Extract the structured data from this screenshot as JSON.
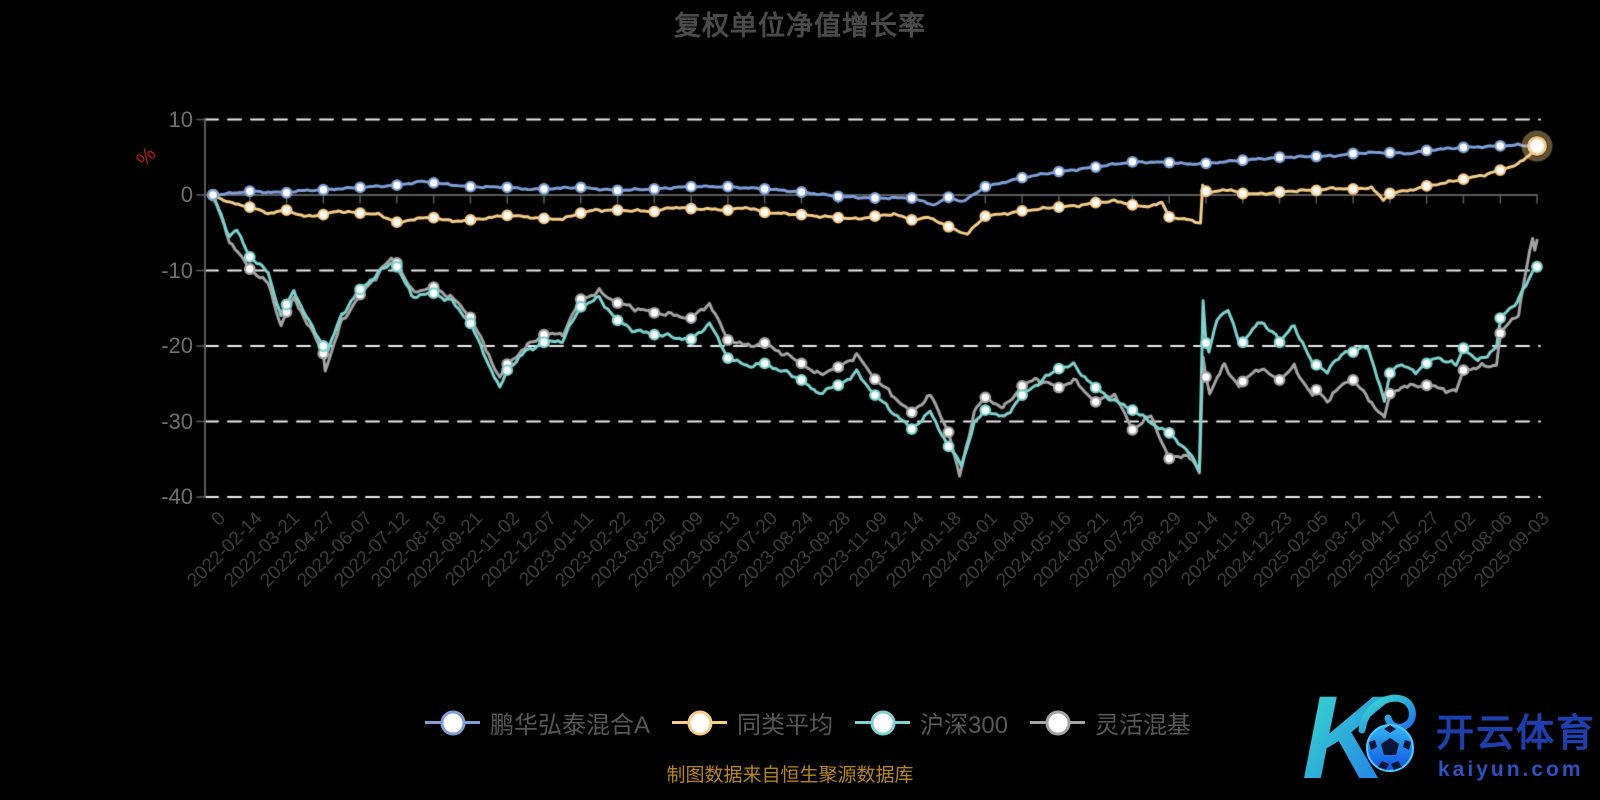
{
  "title": {
    "text": "复权单位净值增长率",
    "color": "#4a4a4a"
  },
  "y_axis": {
    "unit": "%",
    "unit_color": "#c01616",
    "tick_labels": [
      "10",
      "0",
      "-10",
      "-20",
      "-30",
      "-40"
    ],
    "tick_values": [
      10,
      0,
      -10,
      -20,
      -30,
      -40
    ]
  },
  "legend": {
    "items": [
      {
        "label": "鹏华弘泰混合A",
        "color": "#7e9fd8"
      },
      {
        "label": "同类平均",
        "color": "#f6cd87"
      },
      {
        "label": "沪深300",
        "color": "#7cd3cf"
      },
      {
        "label": "灵活混基",
        "color": "#a4a4a4"
      }
    ]
  },
  "footer": {
    "source_note": "制图数据来自恒生聚源数据库"
  },
  "watermark": {
    "letter": "K",
    "brand": "开云体育",
    "domain": "kaiyun.com"
  },
  "chart_data": {
    "type": "line",
    "title": "复权单位净值增长率",
    "ylabel": "%",
    "ylim": [
      -40,
      10
    ],
    "grid": "dashed-white",
    "axis_on_zero": true,
    "gridline_values": [
      10,
      -10,
      -20,
      -30,
      -40
    ],
    "legend_position": "bottom",
    "categories": [
      "0",
      "2022-02-14",
      "2022-03-21",
      "2022-04-27",
      "2022-06-07",
      "2022-07-12",
      "2022-08-16",
      "2022-09-21",
      "2022-11-02",
      "2022-12-07",
      "2023-01-11",
      "2023-02-22",
      "2023-03-29",
      "2023-05-09",
      "2023-06-13",
      "2023-07-20",
      "2023-08-24",
      "2023-09-28",
      "2023-11-09",
      "2023-12-14",
      "2024-01-18",
      "2024-03-01",
      "2024-04-08",
      "2024-05-16",
      "2024-06-21",
      "2024-07-25",
      "2024-08-29",
      "2024-10-14",
      "2024-11-18",
      "2024-12-23",
      "2025-02-05",
      "2025-03-12",
      "2025-04-17",
      "2025-05-27",
      "2025-07-02",
      "2025-08-06",
      "2025-09-03"
    ],
    "series": [
      {
        "name": "灵活混基",
        "color": "#a4a4a4",
        "noise_amp": 0.55,
        "marker_last": false,
        "values": [
          0,
          -9.8,
          -15.5,
          -21.0,
          -13.2,
          -9.0,
          -12.2,
          -16.2,
          -22.4,
          -18.5,
          -13.8,
          -14.3,
          -15.6,
          -16.3,
          -19.2,
          -19.6,
          -22.3,
          -22.8,
          -24.4,
          -28.8,
          -31.4,
          -26.8,
          -25.3,
          -25.5,
          -27.4,
          -31.1,
          -34.9,
          -24.1,
          -24.7,
          -24.5,
          -25.8,
          -24.5,
          -26.3,
          -25.2,
          -23.2,
          -18.3,
          -6.0
        ],
        "extras": [
          [
            0.45,
            -6.0
          ],
          [
            1.5,
            -11.8
          ],
          [
            1.85,
            -17.3
          ],
          [
            2.2,
            -13.6
          ],
          [
            2.6,
            -17.2
          ],
          [
            3.05,
            -23.3
          ],
          [
            3.5,
            -16.8
          ],
          [
            4.85,
            -8.4
          ],
          [
            5.4,
            -12.8
          ],
          [
            6.5,
            -13.6
          ],
          [
            7.8,
            -24.2
          ],
          [
            8.5,
            -20.2
          ],
          [
            9.5,
            -18.4
          ],
          [
            10.5,
            -12.9
          ],
          [
            13.5,
            -14.3
          ],
          [
            14.5,
            -20.0
          ],
          [
            16.4,
            -23.8
          ],
          [
            17.5,
            -21.2
          ],
          [
            19.5,
            -26.5
          ],
          [
            20.3,
            -37.3
          ],
          [
            20.7,
            -28.6
          ],
          [
            21.5,
            -28.3
          ],
          [
            22.4,
            -24.3
          ],
          [
            23.4,
            -24.6
          ],
          [
            24.5,
            -26.2
          ],
          [
            25.5,
            -29.3
          ],
          [
            26.5,
            -34.3
          ],
          [
            26.82,
            -36.8
          ],
          [
            26.92,
            -21.5
          ],
          [
            27.1,
            -26.3
          ],
          [
            27.5,
            -22.5
          ],
          [
            27.9,
            -25.4
          ],
          [
            28.4,
            -22.9
          ],
          [
            29.4,
            -22.8
          ],
          [
            29.9,
            -26.6
          ],
          [
            30.3,
            -27.2
          ],
          [
            30.8,
            -24.8
          ],
          [
            31.85,
            -29.5
          ],
          [
            32.3,
            -25.5
          ],
          [
            33.8,
            -26.0
          ],
          [
            34.9,
            -22.5
          ],
          [
            35.5,
            -15.5
          ],
          [
            35.8,
            -7.5
          ],
          [
            35.88,
            -5.8
          ],
          [
            35.94,
            -7.3
          ]
        ]
      },
      {
        "name": "沪深300",
        "color": "#7cd3cf",
        "noise_amp": 0.55,
        "marker_last": true,
        "values": [
          0,
          -8.2,
          -14.5,
          -20.0,
          -12.5,
          -9.5,
          -13.0,
          -17.0,
          -23.2,
          -19.5,
          -14.8,
          -16.6,
          -18.5,
          -19.1,
          -21.6,
          -22.3,
          -24.5,
          -25.2,
          -26.5,
          -31.0,
          -33.3,
          -28.5,
          -26.5,
          -23.0,
          -25.5,
          -28.5,
          -31.5,
          -19.6,
          -19.5,
          -19.5,
          -22.5,
          -20.8,
          -23.6,
          -22.3,
          -20.3,
          -16.3,
          -9.5
        ],
        "extras": [
          [
            0.45,
            -5.4
          ],
          [
            0.65,
            -4.7
          ],
          [
            1.5,
            -10.3
          ],
          [
            1.85,
            -16.0
          ],
          [
            2.2,
            -12.6
          ],
          [
            2.6,
            -16.8
          ],
          [
            3.05,
            -21.6
          ],
          [
            3.5,
            -15.8
          ],
          [
            4.3,
            -11.2
          ],
          [
            4.85,
            -9.0
          ],
          [
            5.4,
            -13.3
          ],
          [
            6.5,
            -14.2
          ],
          [
            7.8,
            -25.6
          ],
          [
            8.5,
            -20.8
          ],
          [
            9.5,
            -19.2
          ],
          [
            10.5,
            -13.7
          ],
          [
            11.5,
            -18.0
          ],
          [
            13.5,
            -17.0
          ],
          [
            14.5,
            -22.6
          ],
          [
            16.4,
            -26.2
          ],
          [
            17.5,
            -23.6
          ],
          [
            19.5,
            -28.8
          ],
          [
            20.35,
            -35.6
          ],
          [
            20.7,
            -30.3
          ],
          [
            21.5,
            -29.6
          ],
          [
            22.4,
            -25.0
          ],
          [
            23.4,
            -22.6
          ],
          [
            24.5,
            -27.3
          ],
          [
            25.5,
            -30.1
          ],
          [
            26.5,
            -33.9
          ],
          [
            26.82,
            -36.5
          ],
          [
            26.92,
            -14.0
          ],
          [
            27.08,
            -20.8
          ],
          [
            27.3,
            -16.6
          ],
          [
            27.6,
            -14.9
          ],
          [
            27.9,
            -19.6
          ],
          [
            28.4,
            -16.9
          ],
          [
            28.9,
            -18.4
          ],
          [
            29.4,
            -17.2
          ],
          [
            29.9,
            -22.4
          ],
          [
            30.3,
            -23.4
          ],
          [
            30.8,
            -20.6
          ],
          [
            31.4,
            -19.9
          ],
          [
            31.85,
            -27.4
          ],
          [
            32.2,
            -22.5
          ],
          [
            32.7,
            -23.4
          ],
          [
            33.3,
            -21.4
          ],
          [
            33.8,
            -22.6
          ],
          [
            34.4,
            -22.1
          ],
          [
            34.9,
            -20.1
          ],
          [
            35.5,
            -13.8
          ],
          [
            35.75,
            -11.6
          ],
          [
            35.9,
            -9.9
          ]
        ]
      },
      {
        "name": "同类平均",
        "color": "#f6cd87",
        "noise_amp": 0.22,
        "marker_last": true,
        "values": [
          0,
          -1.6,
          -2.0,
          -2.6,
          -2.4,
          -3.6,
          -3.0,
          -3.3,
          -2.7,
          -3.1,
          -2.4,
          -2.0,
          -2.2,
          -1.8,
          -2.0,
          -2.3,
          -2.6,
          -3.0,
          -2.8,
          -3.3,
          -4.2,
          -2.8,
          -2.1,
          -1.6,
          -1.0,
          -1.3,
          -2.9,
          0.5,
          0.2,
          0.4,
          0.6,
          0.8,
          0.2,
          1.2,
          2.1,
          3.3,
          6.5
        ],
        "extras": [
          [
            0.5,
            -1.1
          ],
          [
            1.5,
            -2.4
          ],
          [
            2.5,
            -2.9
          ],
          [
            3.4,
            -2.1
          ],
          [
            4.5,
            -2.6
          ],
          [
            5.0,
            -3.8
          ],
          [
            5.5,
            -3.1
          ],
          [
            6.5,
            -3.5
          ],
          [
            7.5,
            -3.0
          ],
          [
            8.5,
            -2.9
          ],
          [
            9.5,
            -3.2
          ],
          [
            10.4,
            -2.0
          ],
          [
            12.5,
            -1.6
          ],
          [
            14.5,
            -1.6
          ],
          [
            15.5,
            -2.5
          ],
          [
            17.5,
            -3.2
          ],
          [
            18.5,
            -2.5
          ],
          [
            19.5,
            -3.0
          ],
          [
            20.5,
            -5.2
          ],
          [
            21.5,
            -2.5
          ],
          [
            23.5,
            -1.4
          ],
          [
            24.5,
            -0.8
          ],
          [
            25.3,
            -1.6
          ],
          [
            25.8,
            -1.0
          ],
          [
            26.5,
            -3.3
          ],
          [
            26.85,
            -3.7
          ],
          [
            26.91,
            1.3
          ],
          [
            27.05,
            0.2
          ],
          [
            27.5,
            0.8
          ],
          [
            28.5,
            0.1
          ],
          [
            29.5,
            0.6
          ],
          [
            30.5,
            0.9
          ],
          [
            31.5,
            1.0
          ],
          [
            31.82,
            -0.7
          ],
          [
            32.5,
            0.6
          ],
          [
            33.5,
            1.6
          ],
          [
            34.5,
            2.6
          ],
          [
            35.5,
            4.1
          ],
          [
            35.8,
            5.3
          ]
        ]
      },
      {
        "name": "鹏华弘泰混合A",
        "color": "#7e9fd8",
        "noise_amp": 0.18,
        "marker_last": true,
        "values": [
          0,
          0.5,
          0.3,
          0.7,
          1.0,
          1.3,
          1.6,
          1.1,
          1.0,
          0.8,
          1.0,
          0.6,
          0.8,
          1.1,
          1.1,
          0.8,
          0.4,
          -0.2,
          -0.4,
          -0.4,
          -0.3,
          1.1,
          2.3,
          3.1,
          3.7,
          4.4,
          4.3,
          4.2,
          4.6,
          5.0,
          5.1,
          5.5,
          5.6,
          5.9,
          6.3,
          6.5,
          6.5
        ],
        "extras": [
          [
            0.5,
            0.2
          ],
          [
            2.5,
            0.6
          ],
          [
            5.7,
            1.8
          ],
          [
            8.5,
            0.8
          ],
          [
            12.5,
            1.0
          ],
          [
            15.5,
            0.6
          ],
          [
            19.6,
            -1.3
          ],
          [
            20.4,
            -0.9
          ],
          [
            23.5,
            3.4
          ],
          [
            26.5,
            4.1
          ],
          [
            27.5,
            4.4
          ],
          [
            30.5,
            5.2
          ],
          [
            31.5,
            5.6
          ],
          [
            32.5,
            5.5
          ],
          [
            34.5,
            6.4
          ],
          [
            35.5,
            6.6
          ]
        ]
      }
    ],
    "last_point_emphasis": {
      "series": "同类平均",
      "value": 6.5
    }
  }
}
